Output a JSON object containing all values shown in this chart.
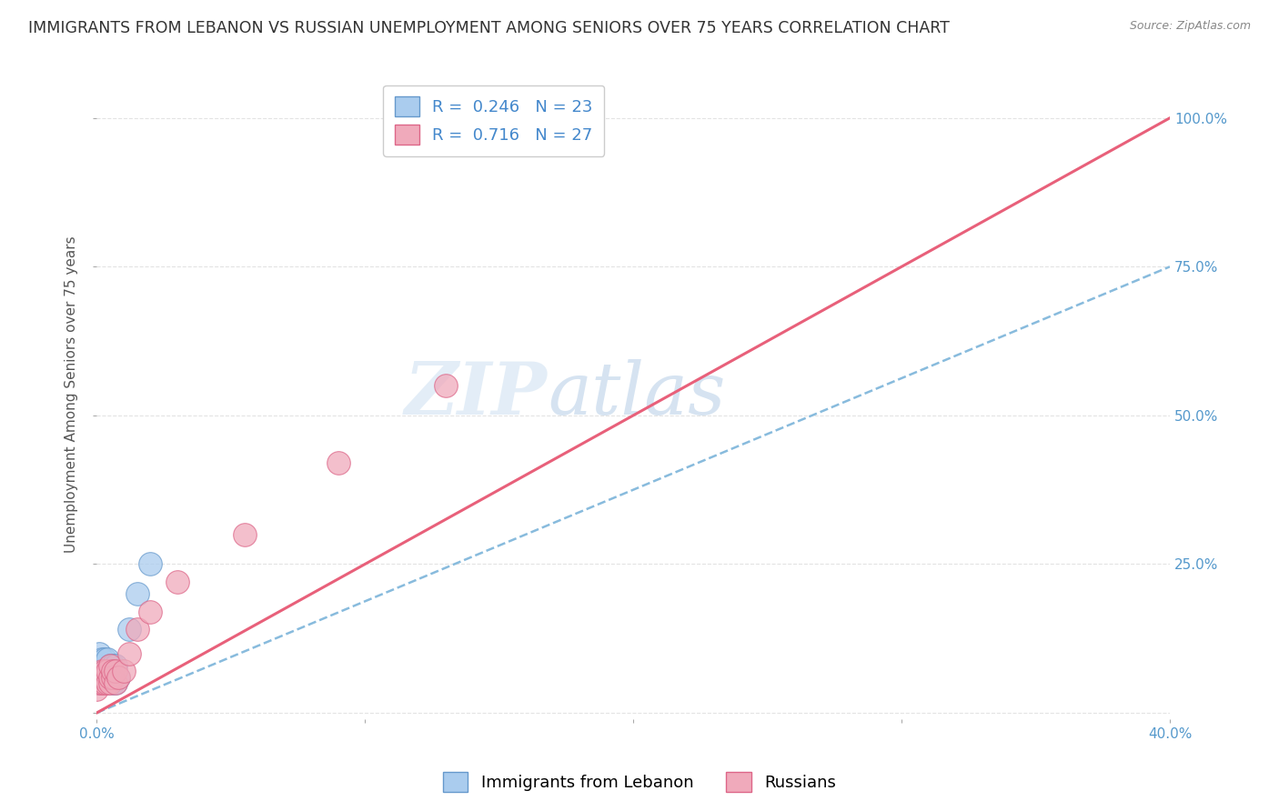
{
  "title": "IMMIGRANTS FROM LEBANON VS RUSSIAN UNEMPLOYMENT AMONG SENIORS OVER 75 YEARS CORRELATION CHART",
  "source": "Source: ZipAtlas.com",
  "ylabel": "Unemployment Among Seniors over 75 years",
  "xlim": [
    0.0,
    0.4
  ],
  "ylim": [
    -0.01,
    1.08
  ],
  "legend_entries": [
    {
      "label": "R =  0.246   N = 23"
    },
    {
      "label": "R =  0.716   N = 27"
    }
  ],
  "series_lebanon": {
    "color": "#aaccee",
    "edge_color": "#6699cc",
    "x": [
      0.0,
      0.001,
      0.001,
      0.001,
      0.002,
      0.002,
      0.002,
      0.003,
      0.003,
      0.003,
      0.004,
      0.004,
      0.004,
      0.005,
      0.005,
      0.006,
      0.006,
      0.007,
      0.007,
      0.008,
      0.012,
      0.015,
      0.02
    ],
    "y": [
      0.06,
      0.05,
      0.08,
      0.1,
      0.06,
      0.07,
      0.09,
      0.06,
      0.07,
      0.09,
      0.05,
      0.07,
      0.09,
      0.06,
      0.08,
      0.05,
      0.08,
      0.05,
      0.08,
      0.06,
      0.14,
      0.2,
      0.25
    ]
  },
  "series_russian": {
    "color": "#f0aabb",
    "edge_color": "#dd6688",
    "x": [
      0.0,
      0.001,
      0.001,
      0.002,
      0.002,
      0.002,
      0.003,
      0.003,
      0.003,
      0.004,
      0.004,
      0.005,
      0.005,
      0.005,
      0.006,
      0.006,
      0.007,
      0.007,
      0.008,
      0.01,
      0.012,
      0.015,
      0.02,
      0.03,
      0.055,
      0.09,
      0.13
    ],
    "y": [
      0.04,
      0.05,
      0.06,
      0.05,
      0.06,
      0.07,
      0.05,
      0.06,
      0.07,
      0.05,
      0.07,
      0.05,
      0.06,
      0.08,
      0.06,
      0.07,
      0.05,
      0.07,
      0.06,
      0.07,
      0.1,
      0.14,
      0.17,
      0.22,
      0.3,
      0.42,
      0.55
    ]
  },
  "watermark_zip": "ZIP",
  "watermark_atlas": "atlas",
  "trend_line_lebanon": {
    "color": "#88bbdd",
    "style": "--",
    "linewidth": 1.8
  },
  "trend_line_russian": {
    "color": "#e8607a",
    "style": "-",
    "linewidth": 2.2
  },
  "title_fontsize": 12.5,
  "axis_label_fontsize": 11,
  "tick_fontsize": 11,
  "legend_fontsize": 13,
  "background_color": "#ffffff",
  "grid_color": "#dddddd",
  "grid_style": "--",
  "grid_alpha": 0.8,
  "leb_color_legend": "#aaccee",
  "leb_edge_legend": "#6699cc",
  "rus_color_legend": "#f0aabb",
  "rus_edge_legend": "#dd6688"
}
